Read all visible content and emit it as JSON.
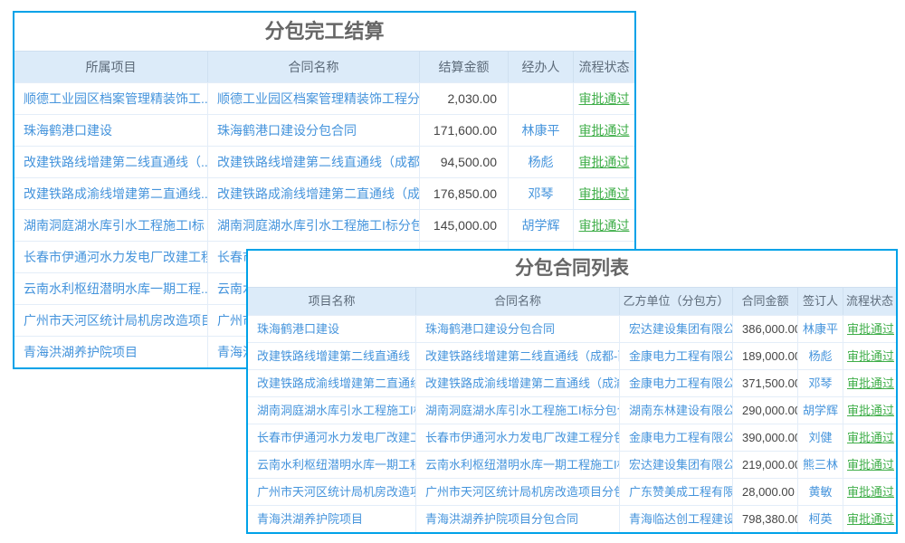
{
  "colors": {
    "panel_border": "#00a2e8",
    "header_bg": "#dcebf9",
    "header_text": "#5d6b7a",
    "link_blue": "#4594dc",
    "amount_text": "#454545",
    "status_green": "#3fae49",
    "title_text": "#666666",
    "divider": "#e3edf8"
  },
  "settlement_table": {
    "title": "分包完工结算",
    "headers": [
      "所属项目",
      "合同名称",
      "结算金额",
      "经办人",
      "流程状态"
    ],
    "rows": [
      {
        "project": "顺德工业园区档案管理精装饰工...",
        "contract": "顺德工业园区档案管理精装饰工程分...",
        "amount": "2,030.00",
        "handler": "",
        "status": "审批通过"
      },
      {
        "project": "珠海鹤港口建设",
        "contract": "珠海鹤港口建设分包合同",
        "amount": "171,600.00",
        "handler": "林康平",
        "status": "审批通过"
      },
      {
        "project": "改建铁路线增建第二线直通线（...",
        "contract": "改建铁路线增建第二线直通线（成都-...",
        "amount": "94,500.00",
        "handler": "杨彪",
        "status": "审批通过"
      },
      {
        "project": "改建铁路成渝线增建第二直通线...",
        "contract": "改建铁路成渝线增建第二直通线（成...",
        "amount": "176,850.00",
        "handler": "邓琴",
        "status": "审批通过"
      },
      {
        "project": "湖南洞庭湖水库引水工程施工I标",
        "contract": "湖南洞庭湖水库引水工程施工I标分包...",
        "amount": "145,000.00",
        "handler": "胡学辉",
        "status": "审批通过"
      },
      {
        "project": "长春市伊通河水力发电厂改建工程",
        "contract": "长春市伊通河水力发电厂改建工程分包...",
        "amount": "",
        "handler": "",
        "status": ""
      },
      {
        "project": "云南水利枢纽潜明水库一期工程...",
        "contract": "云南水利枢纽潜明水库一期工程施工I标...",
        "amount": "",
        "handler": "",
        "status": ""
      },
      {
        "project": "广州市天河区统计局机房改造项目",
        "contract": "广州市天河区统计局机房改造项目分包...",
        "amount": "",
        "handler": "",
        "status": ""
      },
      {
        "project": "青海洪湖养护院项目",
        "contract": "青海洪湖养护院项目分包合同",
        "amount": "",
        "handler": "",
        "status": ""
      }
    ]
  },
  "contract_table": {
    "title": "分包合同列表",
    "headers": [
      "项目名称",
      "合同名称",
      "乙方单位（分包方）",
      "合同金额",
      "签订人",
      "流程状态"
    ],
    "rows": [
      {
        "project": "珠海鹤港口建设",
        "contract": "珠海鹤港口建设分包合同",
        "company": "宏达建设集团有限公司",
        "amount": "386,000.00",
        "signer": "林康平",
        "status": "审批通过"
      },
      {
        "project": "改建铁路线增建第二线直通线（...",
        "contract": "改建铁路线增建第二线直通线（成都-西...",
        "company": "金康电力工程有限公司",
        "amount": "189,000.00",
        "signer": "杨彪",
        "status": "审批通过"
      },
      {
        "project": "改建铁路成渝线增建第二直通线...",
        "contract": "改建铁路成渝线增建第二直通线（成渝...",
        "company": "金康电力工程有限公司",
        "amount": "371,500.00",
        "signer": "邓琴",
        "status": "审批通过"
      },
      {
        "project": "湖南洞庭湖水库引水工程施工I标",
        "contract": "湖南洞庭湖水库引水工程施工I标分包合同",
        "company": "湖南东林建设有限公司",
        "amount": "290,000.00",
        "signer": "胡学辉",
        "status": "审批通过"
      },
      {
        "project": "长春市伊通河水力发电厂改建工程",
        "contract": "长春市伊通河水力发电厂改建工程分包...",
        "company": "金康电力工程有限公司",
        "amount": "390,000.00",
        "signer": "刘健",
        "status": "审批通过"
      },
      {
        "project": "云南水利枢纽潜明水库一期工程...",
        "contract": "云南水利枢纽潜明水库一期工程施工I标...",
        "company": "宏达建设集团有限公司",
        "amount": "219,000.00",
        "signer": "熊三林",
        "status": "审批通过"
      },
      {
        "project": "广州市天河区统计局机房改造项目",
        "contract": "广州市天河区统计局机房改造项目分包...",
        "company": "广东赞美成工程有限...",
        "amount": "28,000.00",
        "signer": "黄敏",
        "status": "审批通过"
      },
      {
        "project": "青海洪湖养护院项目",
        "contract": "青海洪湖养护院项目分包合同",
        "company": "青海临达创工程建设...",
        "amount": "798,380.00",
        "signer": "柯英",
        "status": "审批通过"
      }
    ]
  }
}
